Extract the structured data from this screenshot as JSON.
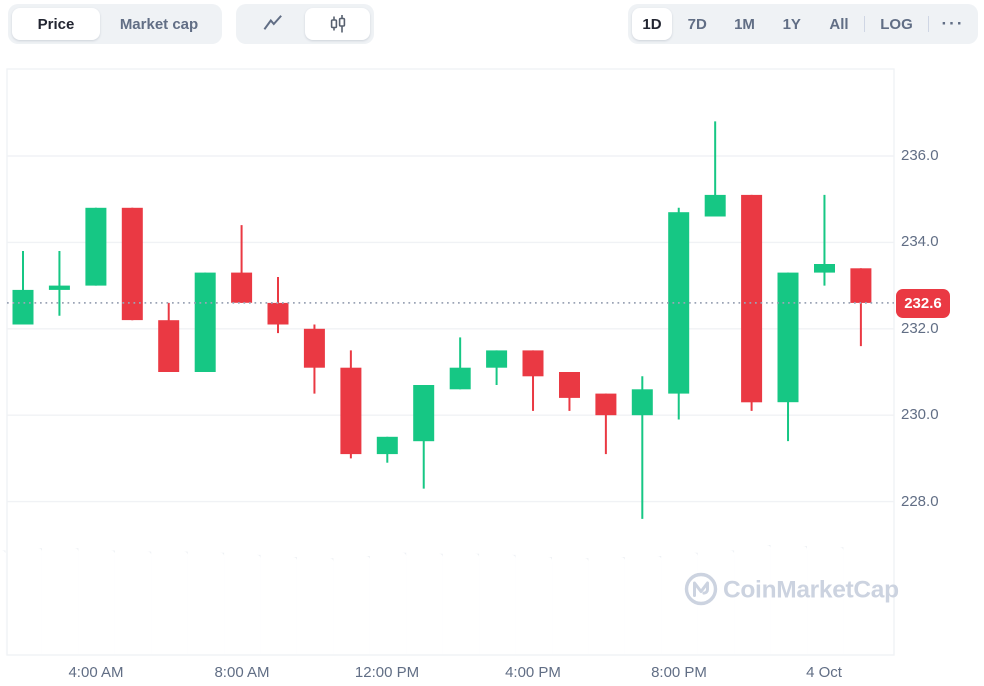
{
  "toolbar": {
    "price_label": "Price",
    "market_cap_label": "Market cap",
    "active_metric": "Price",
    "icons": {
      "line_chart": "line-chart-icon",
      "candlestick": "candlestick-icon",
      "more_options": "more-options-icon"
    },
    "active_chart_type": "candlestick",
    "ranges": [
      "1D",
      "7D",
      "1M",
      "1Y",
      "All"
    ],
    "active_range": "1D",
    "log_label": "LOG",
    "more_glyph": "···"
  },
  "watermark": {
    "text": "CoinMarketCap"
  },
  "chart_data": {
    "type": "candlestick",
    "title": "",
    "xlabel": "",
    "ylabel": "",
    "x_labels": [
      "4:00 AM",
      "8:00 AM",
      "12:00 PM",
      "4:00 PM",
      "8:00 PM",
      "4 Oct"
    ],
    "x_label_candle_indices": [
      2,
      6,
      10,
      14,
      18,
      22
    ],
    "y_ticks": [
      236.0,
      234.0,
      232.0,
      230.0,
      228.0
    ],
    "y_tick_labels": [
      "236.0",
      "234.0",
      "232.0",
      "230.0",
      "228.0"
    ],
    "ylim": [
      224.5,
      238.0
    ],
    "grid": true,
    "legend": false,
    "current_price": 232.6,
    "current_price_label": "232.6",
    "candles": [
      {
        "o": 232.1,
        "h": 233.8,
        "l": 232.1,
        "c": 232.9
      },
      {
        "o": 232.9,
        "h": 233.8,
        "l": 232.3,
        "c": 233.0
      },
      {
        "o": 233.0,
        "h": 234.8,
        "l": 233.0,
        "c": 234.8
      },
      {
        "o": 234.8,
        "h": 234.8,
        "l": 232.2,
        "c": 232.2
      },
      {
        "o": 232.2,
        "h": 232.6,
        "l": 231.0,
        "c": 231.0
      },
      {
        "o": 231.0,
        "h": 233.3,
        "l": 231.0,
        "c": 233.3
      },
      {
        "o": 233.3,
        "h": 234.4,
        "l": 232.6,
        "c": 232.6
      },
      {
        "o": 232.6,
        "h": 233.2,
        "l": 231.9,
        "c": 232.1
      },
      {
        "o": 232.0,
        "h": 232.1,
        "l": 230.5,
        "c": 231.1
      },
      {
        "o": 231.1,
        "h": 231.5,
        "l": 229.0,
        "c": 229.1
      },
      {
        "o": 229.1,
        "h": 229.5,
        "l": 228.9,
        "c": 229.5
      },
      {
        "o": 229.4,
        "h": 230.7,
        "l": 228.3,
        "c": 230.7
      },
      {
        "o": 230.6,
        "h": 231.8,
        "l": 230.6,
        "c": 231.1
      },
      {
        "o": 231.1,
        "h": 231.5,
        "l": 230.7,
        "c": 231.5
      },
      {
        "o": 231.5,
        "h": 231.5,
        "l": 230.1,
        "c": 230.9
      },
      {
        "o": 231.0,
        "h": 231.0,
        "l": 230.1,
        "c": 230.4
      },
      {
        "o": 230.5,
        "h": 230.5,
        "l": 229.1,
        "c": 230.0
      },
      {
        "o": 230.0,
        "h": 230.9,
        "l": 227.6,
        "c": 230.6
      },
      {
        "o": 230.5,
        "h": 234.8,
        "l": 229.9,
        "c": 234.7
      },
      {
        "o": 234.6,
        "h": 236.8,
        "l": 234.6,
        "c": 235.1
      },
      {
        "o": 235.1,
        "h": 235.1,
        "l": 230.1,
        "c": 230.3
      },
      {
        "o": 230.3,
        "h": 233.3,
        "l": 229.4,
        "c": 233.3
      },
      {
        "o": 233.3,
        "h": 235.1,
        "l": 233.0,
        "c": 233.5
      },
      {
        "o": 233.4,
        "h": 233.4,
        "l": 231.6,
        "c": 232.6
      }
    ],
    "volume_relative": [
      0.95,
      0.97,
      0.97,
      0.95,
      0.94,
      0.94,
      0.93,
      0.91,
      0.89,
      0.88,
      0.9,
      0.93,
      0.92,
      0.92,
      0.91,
      0.89,
      0.88,
      0.89,
      0.9,
      0.93,
      0.95,
      1.0,
      0.99,
      0.98
    ],
    "colors": {
      "up": "#16c784",
      "down": "#ea3943",
      "volume_bar": "#edf0f4",
      "grid": "#f0f2f5",
      "dotted_line": "#9ba4b5",
      "price_badge": "#ea3943",
      "axis_text": "#616e85",
      "watermark": "#ccd3e0"
    }
  }
}
